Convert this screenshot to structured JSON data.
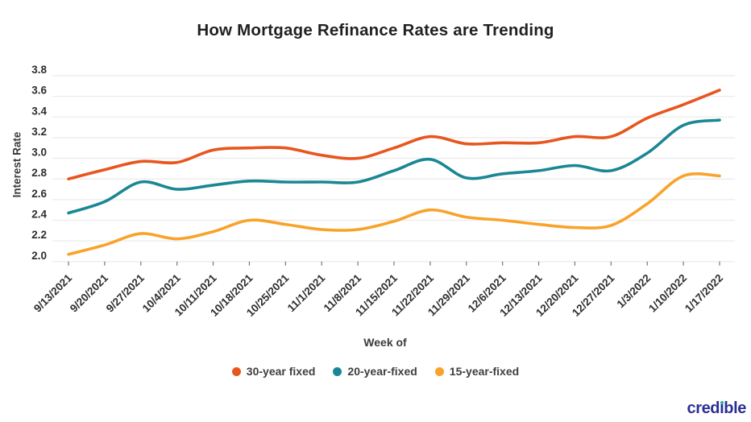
{
  "title": "How Mortgage Refinance Rates are Trending",
  "chart_data": {
    "type": "line",
    "x_label": "Week of",
    "y_label": "Interest Rate",
    "x": [
      "9/13/2021",
      "9/20/2021",
      "9/27/2021",
      "10/4/2021",
      "10/11/2021",
      "10/18/2021",
      "10/25/2021",
      "11/1/2021",
      "11/8/2021",
      "11/15/2021",
      "11/22/2021",
      "11/29/2021",
      "12/6/2021",
      "12/13/2021",
      "12/20/2021",
      "12/27/2021",
      "1/3/2022",
      "1/10/2022",
      "1/17/2022"
    ],
    "series": [
      {
        "name": "30-year fixed",
        "color": "#E8561F",
        "values": [
          2.8,
          2.89,
          2.97,
          2.96,
          3.08,
          3.1,
          3.1,
          3.03,
          3.0,
          3.1,
          3.21,
          3.14,
          3.15,
          3.15,
          3.21,
          3.21,
          3.39,
          3.52,
          3.66
        ]
      },
      {
        "name": "20-year-fixed",
        "color": "#1A8794",
        "values": [
          2.47,
          2.58,
          2.77,
          2.7,
          2.74,
          2.78,
          2.77,
          2.77,
          2.77,
          2.88,
          2.99,
          2.81,
          2.85,
          2.88,
          2.93,
          2.88,
          3.05,
          3.32,
          3.37
        ]
      },
      {
        "name": "15-year-fixed",
        "color": "#F8A32A",
        "values": [
          2.07,
          2.16,
          2.27,
          2.22,
          2.29,
          2.4,
          2.36,
          2.31,
          2.31,
          2.39,
          2.5,
          2.43,
          2.4,
          2.36,
          2.33,
          2.35,
          2.56,
          2.83,
          2.83
        ]
      }
    ],
    "y_ticks": [
      3.8,
      3.6,
      3.4,
      3.2,
      3.0,
      2.8,
      2.6,
      2.4,
      2.2,
      2.0
    ],
    "y_range": [
      2.0,
      3.8
    ],
    "grid": "horizontal",
    "legend_position": "bottom",
    "line_smoothing": true
  },
  "branding": {
    "logo_text": "credible",
    "logo_color": "#2B3193",
    "logo_dot_color": "#2EAF9C"
  },
  "colors": {
    "background": "#FFFFFF",
    "gridline": "#EBEBEB",
    "axis_text": "#2E2E2E",
    "title_text": "#231F20",
    "tick_mark": "#777777"
  }
}
